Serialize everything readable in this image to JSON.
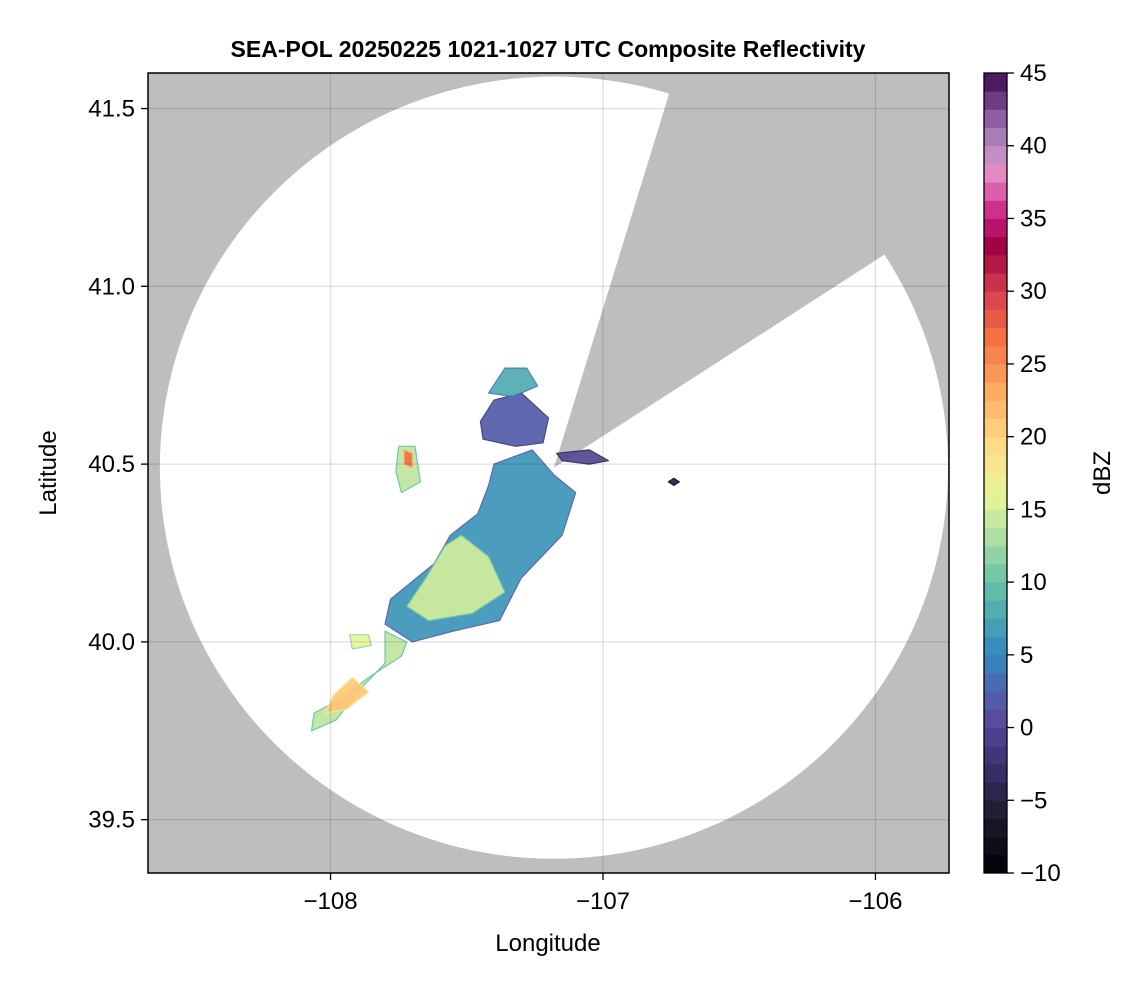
{
  "chart_data": {
    "type": "heatmap",
    "title": "SEA-POL 20250225 1021-1027 UTC Composite Reflectivity",
    "xlabel": "Longitude",
    "ylabel": "Latitude",
    "xlim": [
      -108.67,
      -105.73
    ],
    "ylim": [
      39.35,
      41.6
    ],
    "x_ticks": [
      -108,
      -107,
      -106
    ],
    "x_tick_labels": [
      "−108",
      "−107",
      "−106"
    ],
    "y_ticks": [
      39.5,
      40.0,
      40.5,
      41.0,
      41.5
    ],
    "y_tick_labels": [
      "39.5",
      "40.0",
      "40.5",
      "41.0",
      "41.5"
    ],
    "grid": true,
    "background_color": "#bebebe",
    "coverage_color": "#ffffff",
    "radar": {
      "center": [
        -107.18,
        40.49
      ],
      "max_range_lat_deg": 1.1,
      "blocked_sector_azimuths_deg": [
        [
          17,
          57
        ]
      ]
    },
    "colorbar": {
      "label": "dBZ",
      "min": -10,
      "max": 45,
      "ticks": [
        -10,
        -5,
        0,
        5,
        10,
        15,
        20,
        25,
        30,
        35,
        40,
        45
      ],
      "tick_labels": [
        "−10",
        "−5",
        "0",
        "5",
        "10",
        "15",
        "20",
        "25",
        "30",
        "35",
        "40",
        "45"
      ],
      "colormap": "spectral_r",
      "stops": [
        {
          "v": -10,
          "c": "#000004"
        },
        {
          "v": -6,
          "c": "#1e1b2e"
        },
        {
          "v": -2,
          "c": "#3f3679"
        },
        {
          "v": 1,
          "c": "#5e4fa2"
        },
        {
          "v": 5,
          "c": "#3288bd"
        },
        {
          "v": 10,
          "c": "#66c2a5"
        },
        {
          "v": 13,
          "c": "#abdda4"
        },
        {
          "v": 16,
          "c": "#e6f598"
        },
        {
          "v": 19,
          "c": "#fee08b"
        },
        {
          "v": 23,
          "c": "#fdae61"
        },
        {
          "v": 27,
          "c": "#f46d43"
        },
        {
          "v": 30,
          "c": "#d53e4f"
        },
        {
          "v": 33,
          "c": "#9e0142"
        },
        {
          "v": 35,
          "c": "#c51b7d"
        },
        {
          "v": 38,
          "c": "#e78ac3"
        },
        {
          "v": 40,
          "c": "#b48ec4"
        },
        {
          "v": 42,
          "c": "#8c5aa1"
        },
        {
          "v": 45,
          "c": "#3f0a4f"
        }
      ]
    },
    "echo_regions": [
      {
        "name": "north-band",
        "dbz": 2,
        "points": [
          [
            -107.45,
            40.62
          ],
          [
            -107.4,
            40.68
          ],
          [
            -107.3,
            40.7
          ],
          [
            -107.2,
            40.63
          ],
          [
            -107.22,
            40.56
          ],
          [
            -107.32,
            40.55
          ],
          [
            -107.44,
            40.57
          ]
        ]
      },
      {
        "name": "north-band-east",
        "dbz": 0,
        "points": [
          [
            -107.17,
            40.53
          ],
          [
            -107.05,
            40.54
          ],
          [
            -106.98,
            40.51
          ],
          [
            -107.05,
            40.5
          ],
          [
            -107.15,
            40.51
          ]
        ]
      },
      {
        "name": "north-fringe",
        "dbz": 8,
        "points": [
          [
            -107.42,
            40.7
          ],
          [
            -107.36,
            40.77
          ],
          [
            -107.28,
            40.77
          ],
          [
            -107.24,
            40.72
          ],
          [
            -107.33,
            40.69
          ]
        ]
      },
      {
        "name": "main-mass",
        "dbz": 6,
        "points": [
          [
            -107.4,
            40.5
          ],
          [
            -107.26,
            40.54
          ],
          [
            -107.18,
            40.47
          ],
          [
            -107.1,
            40.42
          ],
          [
            -107.15,
            40.3
          ],
          [
            -107.3,
            40.18
          ],
          [
            -107.38,
            40.06
          ],
          [
            -107.55,
            40.03
          ],
          [
            -107.7,
            40.0
          ],
          [
            -107.8,
            40.05
          ],
          [
            -107.78,
            40.12
          ],
          [
            -107.62,
            40.22
          ],
          [
            -107.56,
            40.3
          ],
          [
            -107.46,
            40.36
          ],
          [
            -107.42,
            40.44
          ]
        ]
      },
      {
        "name": "main-core",
        "dbz": 15,
        "points": [
          [
            -107.52,
            40.3
          ],
          [
            -107.42,
            40.24
          ],
          [
            -107.36,
            40.14
          ],
          [
            -107.48,
            40.08
          ],
          [
            -107.64,
            40.06
          ],
          [
            -107.72,
            40.1
          ],
          [
            -107.65,
            40.18
          ],
          [
            -107.58,
            40.27
          ]
        ]
      },
      {
        "name": "tail-band",
        "dbz": 14,
        "points": [
          [
            -107.8,
            40.03
          ],
          [
            -107.72,
            40.0
          ],
          [
            -107.74,
            39.96
          ],
          [
            -107.86,
            39.9
          ],
          [
            -107.96,
            39.84
          ],
          [
            -108.06,
            39.8
          ],
          [
            -108.07,
            39.75
          ],
          [
            -107.98,
            39.78
          ],
          [
            -107.9,
            39.86
          ],
          [
            -107.8,
            39.94
          ]
        ]
      },
      {
        "name": "tail-core",
        "dbz": 21,
        "points": [
          [
            -107.92,
            39.9
          ],
          [
            -107.86,
            39.86
          ],
          [
            -107.94,
            39.81
          ],
          [
            -108.02,
            39.8
          ],
          [
            -107.99,
            39.85
          ]
        ]
      },
      {
        "name": "west-cell",
        "dbz": 14,
        "points": [
          [
            -107.75,
            40.55
          ],
          [
            -107.69,
            40.55
          ],
          [
            -107.67,
            40.45
          ],
          [
            -107.74,
            40.42
          ],
          [
            -107.76,
            40.48
          ]
        ]
      },
      {
        "name": "west-cell-core",
        "dbz": 27,
        "points": [
          [
            -107.73,
            40.54
          ],
          [
            -107.7,
            40.53
          ],
          [
            -107.7,
            40.49
          ],
          [
            -107.73,
            40.5
          ]
        ]
      },
      {
        "name": "small-cell-sw",
        "dbz": 16,
        "points": [
          [
            -107.93,
            40.02
          ],
          [
            -107.86,
            40.02
          ],
          [
            -107.85,
            39.99
          ],
          [
            -107.92,
            39.98
          ]
        ]
      },
      {
        "name": "speck-se",
        "dbz": -5,
        "points": [
          [
            -106.76,
            40.45
          ],
          [
            -106.74,
            40.46
          ],
          [
            -106.72,
            40.45
          ],
          [
            -106.74,
            40.44
          ]
        ]
      }
    ]
  }
}
